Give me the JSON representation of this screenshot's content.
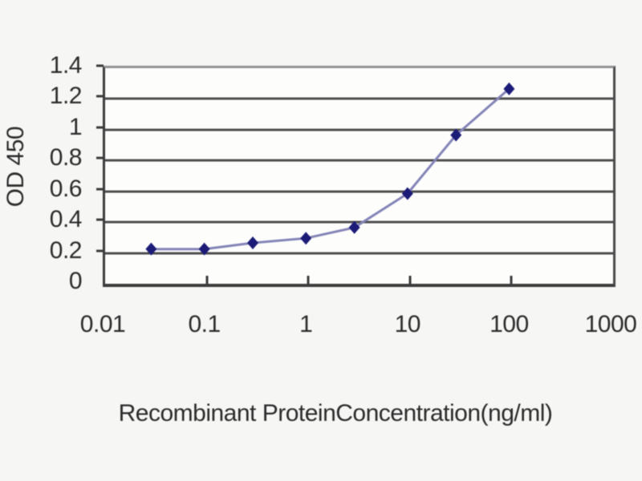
{
  "page": {
    "background": "#f6f6f5"
  },
  "chart_data": {
    "type": "line",
    "title": "",
    "xlabel": "Recombinant ProteinConcentration(ng/ml)",
    "ylabel": "OD 450",
    "x_scale": "log",
    "xlim": [
      0.01,
      1000
    ],
    "ylim": [
      0,
      1.4
    ],
    "x_ticks": [
      0.01,
      0.1,
      1,
      10,
      100,
      1000
    ],
    "x_tick_labels": [
      "0.01",
      "0.1",
      "1",
      "10",
      "100",
      "1000"
    ],
    "y_ticks": [
      0,
      0.2,
      0.4,
      0.6,
      0.8,
      1,
      1.2,
      1.4
    ],
    "y_tick_labels": [
      "0",
      "0.2",
      "0.4",
      "0.6",
      "0.8",
      "1",
      "1.2",
      "1.4"
    ],
    "grid": "horizontal-only",
    "legend": "none",
    "series": [
      {
        "name": "OD 450",
        "marker": "diamond",
        "marker_color": "#1c1c78",
        "line_color": "#8484b8",
        "points": [
          {
            "x": 0.03,
            "y": 0.21
          },
          {
            "x": 0.1,
            "y": 0.21
          },
          {
            "x": 0.3,
            "y": 0.25
          },
          {
            "x": 1,
            "y": 0.28
          },
          {
            "x": 3,
            "y": 0.35
          },
          {
            "x": 10,
            "y": 0.57
          },
          {
            "x": 30,
            "y": 0.95
          },
          {
            "x": 100,
            "y": 1.25
          }
        ]
      }
    ],
    "colors": {
      "grid": "#4f4f4f",
      "axis": "#3c3c3c",
      "text": "#2b2b2b"
    }
  }
}
